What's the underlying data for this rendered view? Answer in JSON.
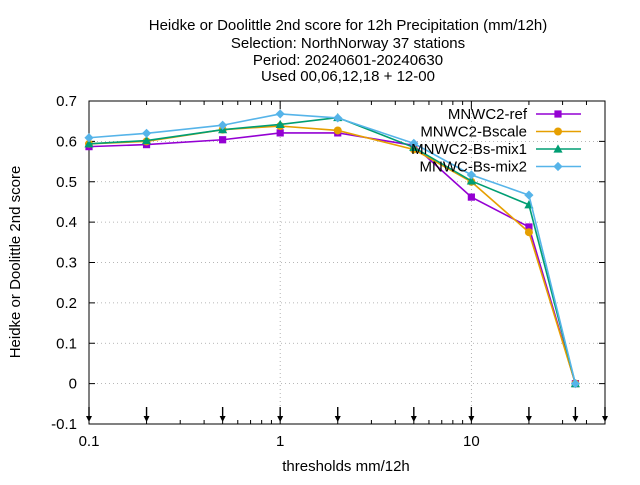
{
  "chart_data": {
    "type": "line",
    "title_lines": [
      "Heidke or Doolittle 2nd score  for 12h Precipitation (mm/12h)",
      "Selection: NorthNorway      37 stations",
      "Period: 20240601-20240630",
      "Used 00,06,12,18 + 12-00"
    ],
    "xlabel": "thresholds mm/12h",
    "ylabel": "Heidke or Doolittle 2nd score",
    "xscale": "log",
    "xlim": [
      0.1,
      50
    ],
    "ylim": [
      -0.1,
      0.7
    ],
    "xticks": [
      0.1,
      1,
      10
    ],
    "xtick_labels": [
      "0.1",
      "1",
      "10"
    ],
    "yticks": [
      -0.1,
      0,
      0.1,
      0.2,
      0.3,
      0.4,
      0.5,
      0.6,
      0.7
    ],
    "ytick_labels": [
      "-0.1",
      "0",
      "0.1",
      "0.2",
      "0.3",
      "0.4",
      "0.5",
      "0.6",
      "0.7"
    ],
    "grid": true,
    "legend_position": "top-right",
    "threshold_markers": [
      0.1,
      0.2,
      0.5,
      1,
      2,
      5,
      10,
      20,
      35,
      50
    ],
    "series": [
      {
        "name": "MNWC2-ref",
        "color": "#9400d3",
        "marker": "square",
        "x": [
          0.1,
          0.2,
          0.5,
          1,
          2,
          5,
          10,
          20,
          35
        ],
        "y": [
          0.587,
          0.592,
          0.604,
          0.621,
          0.621,
          0.59,
          0.462,
          0.388,
          0.0
        ]
      },
      {
        "name": "MNWC2-Bscale",
        "color": "#e69f00",
        "marker": "circle",
        "x": [
          0.1,
          0.2,
          0.5,
          1,
          2,
          5,
          10,
          20,
          35
        ],
        "y": [
          0.594,
          0.6,
          0.629,
          0.638,
          0.627,
          0.58,
          0.5,
          0.375,
          0.0
        ]
      },
      {
        "name": "MNWC2-Bs-mix1",
        "color": "#009e73",
        "marker": "triangle",
        "x": [
          0.1,
          0.2,
          0.5,
          1,
          2,
          5,
          10,
          20,
          35
        ],
        "y": [
          0.594,
          0.602,
          0.629,
          0.642,
          0.659,
          0.585,
          0.502,
          0.443,
          0.0
        ]
      },
      {
        "name": "MNWC-Bs-mix2",
        "color": "#56b4e9",
        "marker": "diamond",
        "x": [
          0.1,
          0.2,
          0.5,
          1,
          2,
          5,
          10,
          20,
          35
        ],
        "y": [
          0.609,
          0.62,
          0.64,
          0.668,
          0.658,
          0.595,
          0.517,
          0.467,
          0.0
        ]
      }
    ]
  }
}
